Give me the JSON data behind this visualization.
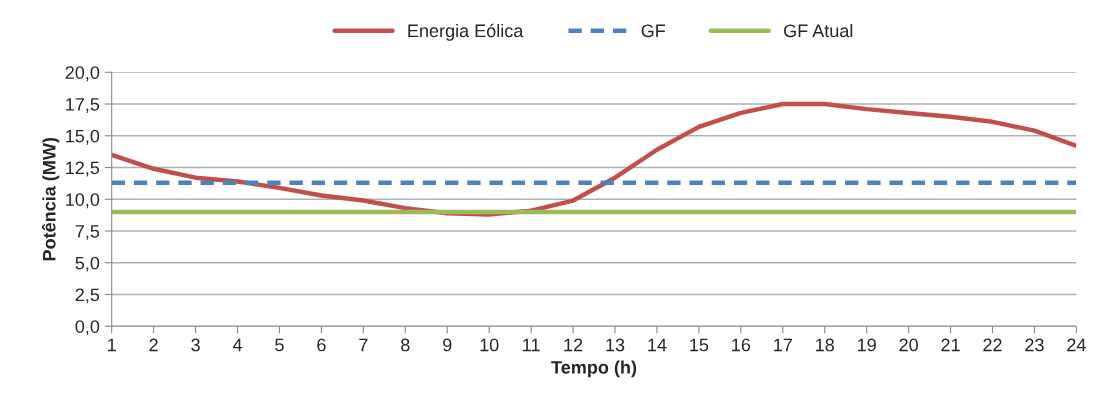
{
  "chart_data": {
    "type": "line",
    "xlabel": "Tempo (h)",
    "ylabel": "Potência (MW)",
    "categories": [
      "1",
      "2",
      "3",
      "4",
      "5",
      "6",
      "7",
      "8",
      "9",
      "10",
      "11",
      "12",
      "13",
      "14",
      "15",
      "16",
      "17",
      "18",
      "19",
      "20",
      "21",
      "22",
      "23",
      "24"
    ],
    "series": [
      {
        "name": "Energia Eólica",
        "color": "#c0504d",
        "line_style": "solid",
        "values": [
          13.5,
          12.4,
          11.7,
          11.4,
          10.9,
          10.3,
          9.9,
          9.3,
          8.9,
          8.8,
          9.1,
          9.9,
          11.7,
          13.9,
          15.7,
          16.8,
          17.5,
          17.5,
          17.1,
          16.8,
          16.5,
          16.1,
          15.4,
          14.2
        ]
      },
      {
        "name": "GF",
        "color": "#4f81bd",
        "line_style": "dashed",
        "values": [
          11.3,
          11.3,
          11.3,
          11.3,
          11.3,
          11.3,
          11.3,
          11.3,
          11.3,
          11.3,
          11.3,
          11.3,
          11.3,
          11.3,
          11.3,
          11.3,
          11.3,
          11.3,
          11.3,
          11.3,
          11.3,
          11.3,
          11.3,
          11.3
        ]
      },
      {
        "name": "GF Atual",
        "color": "#9bbb59",
        "line_style": "solid",
        "values": [
          9.0,
          9.0,
          9.0,
          9.0,
          9.0,
          9.0,
          9.0,
          9.0,
          9.0,
          9.0,
          9.0,
          9.0,
          9.0,
          9.0,
          9.0,
          9.0,
          9.0,
          9.0,
          9.0,
          9.0,
          9.0,
          9.0,
          9.0,
          9.0
        ]
      }
    ],
    "ylim": [
      0,
      20
    ],
    "yticks": [
      {
        "value": 0,
        "label": "0,0"
      },
      {
        "value": 2.5,
        "label": "2,5"
      },
      {
        "value": 5,
        "label": "5,0"
      },
      {
        "value": 7.5,
        "label": "7,5"
      },
      {
        "value": 10,
        "label": "10,0"
      },
      {
        "value": 12.5,
        "label": "12,5"
      },
      {
        "value": 15,
        "label": "15,0"
      },
      {
        "value": 17.5,
        "label": "17,5"
      },
      {
        "value": 20,
        "label": "20,0"
      }
    ],
    "grid": "y",
    "legend": "top",
    "marker": "none"
  }
}
